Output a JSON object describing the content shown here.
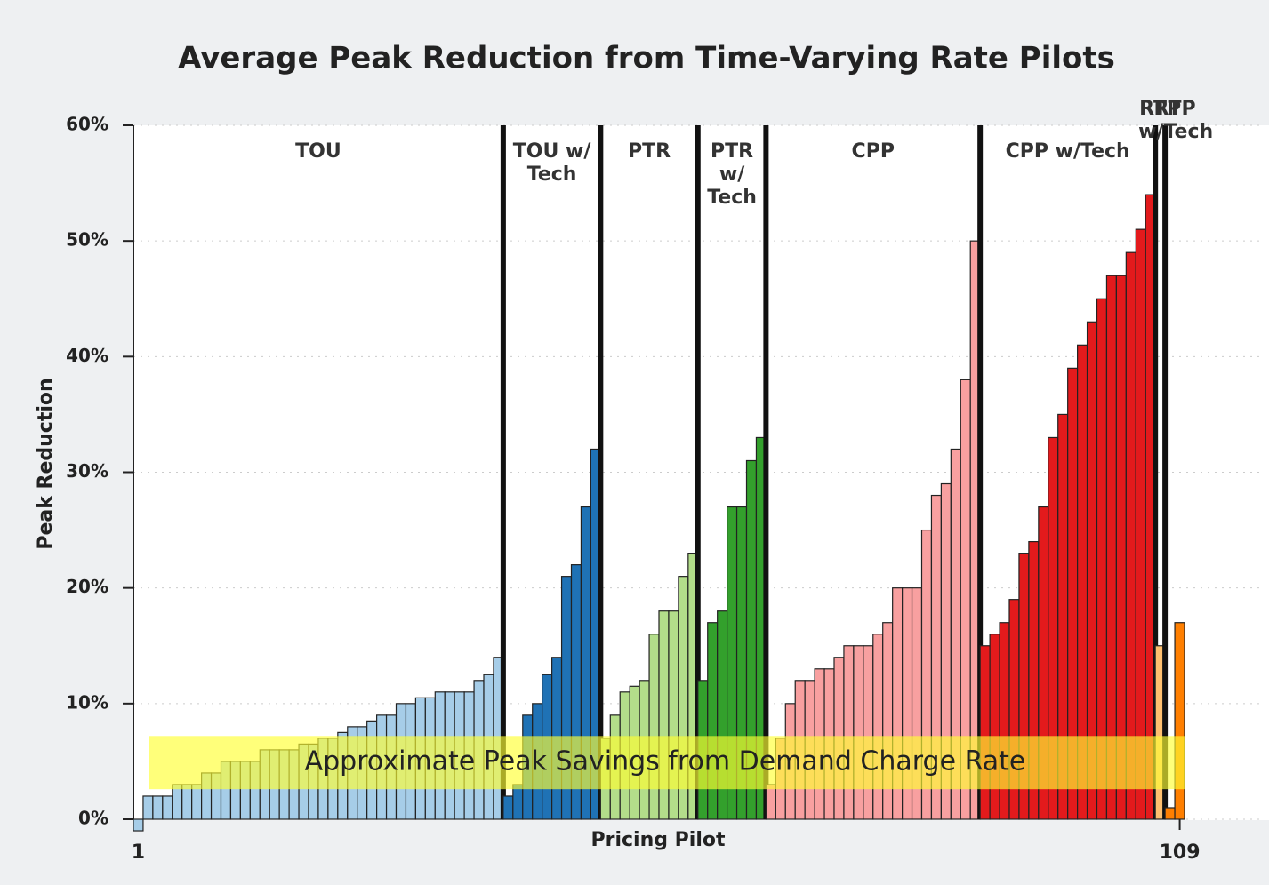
{
  "chart_data": {
    "type": "bar",
    "title": "Average Peak Reduction from Time-Varying Rate Pilots",
    "y_label": "Peak Reduction",
    "x_label": "Pricing Pilot",
    "ylim": [
      0,
      60
    ],
    "yticks": [
      {
        "value": 0,
        "label": "0%"
      },
      {
        "value": 10,
        "label": "10%"
      },
      {
        "value": 20,
        "label": "20%"
      },
      {
        "value": 30,
        "label": "30%"
      },
      {
        "value": 40,
        "label": "40%"
      },
      {
        "value": 50,
        "label": "50%"
      },
      {
        "value": 60,
        "label": "60%"
      }
    ],
    "xlim": [
      1,
      109
    ],
    "xticks": [
      1,
      109
    ],
    "grid": true,
    "series": [
      {
        "name": "TOU",
        "color": "#a6cde8",
        "values": [
          -1,
          2,
          2,
          2,
          3,
          3,
          3,
          4,
          4,
          5,
          5,
          5,
          5,
          6,
          6,
          6,
          6,
          6.5,
          6.5,
          7,
          7,
          7.5,
          8,
          8,
          8.5,
          9,
          9,
          10,
          10,
          10.5,
          10.5,
          11,
          11,
          11,
          11,
          12,
          12.5,
          14
        ]
      },
      {
        "name": "TOU w/ Tech",
        "color": "#1f72b5",
        "values": [
          2,
          3,
          9,
          10,
          12.5,
          14,
          21,
          22,
          27,
          32
        ]
      },
      {
        "name": "PTR",
        "color": "#b3dd8a",
        "values": [
          7,
          9,
          11,
          11.5,
          12,
          16,
          18,
          18,
          21,
          23
        ]
      },
      {
        "name": "PTR w/ Tech",
        "color": "#33a02c",
        "values": [
          12,
          17,
          18,
          27,
          27,
          31,
          33
        ]
      },
      {
        "name": "CPP",
        "color": "#f8a0a0",
        "values": [
          3,
          7,
          10,
          12,
          12,
          13,
          13,
          14,
          15,
          15,
          15,
          16,
          17,
          20,
          20,
          20,
          25,
          28,
          29,
          32,
          38,
          50
        ]
      },
      {
        "name": "CPP w/Tech",
        "color": "#e31a1c",
        "values": [
          15,
          16,
          17,
          19,
          23,
          24,
          27,
          33,
          35,
          39,
          41,
          43,
          45,
          47,
          47,
          49,
          51,
          54
        ]
      },
      {
        "name": "RTP",
        "color": "#fdbf6f",
        "values": [
          15
        ]
      },
      {
        "name": "RTP w/Tech",
        "color": "#ff7f00",
        "values": [
          1,
          17
        ]
      }
    ],
    "annotation": {
      "text": "Approximate Peak Savings from Demand Charge Rate",
      "band": [
        2.6,
        7.2
      ],
      "color": "#ffff33"
    }
  }
}
